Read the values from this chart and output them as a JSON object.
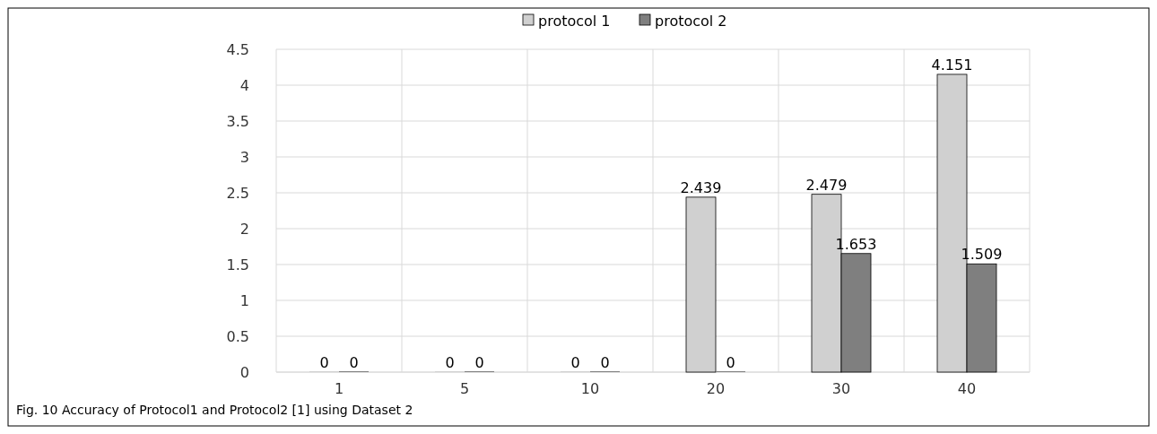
{
  "chart_data": {
    "type": "bar",
    "categories": [
      "1",
      "5",
      "10",
      "20",
      "30",
      "40"
    ],
    "series": [
      {
        "name": "protocol 1",
        "color": "#d0d0d0",
        "values": [
          0,
          0,
          0,
          2.439,
          2.479,
          4.151
        ]
      },
      {
        "name": "protocol 2",
        "color": "#7f7f7f",
        "values": [
          0,
          0,
          0,
          0,
          1.653,
          1.509
        ]
      }
    ],
    "ylim": [
      0,
      4.5
    ],
    "yticks": [
      0,
      0.5,
      1,
      1.5,
      2,
      2.5,
      3,
      3.5,
      4,
      4.5
    ],
    "grid": true,
    "legend": "top",
    "data_labels": true,
    "annotations": [
      "Fig. 10 Accuracy of Protocol1 and Protocol2 [1] using Dataset 2"
    ]
  }
}
